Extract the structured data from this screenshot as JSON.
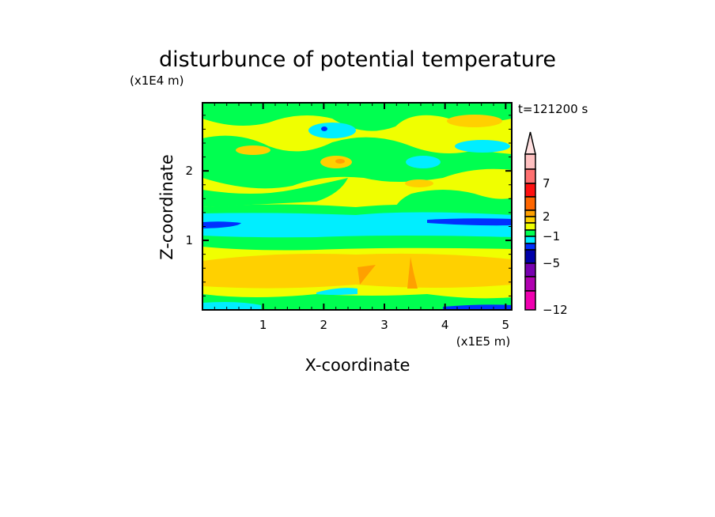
{
  "chart_data": {
    "type": "heatmap",
    "subtype": "filled-contour",
    "title": "disturbunce of potential temperature",
    "xlabel": "X-coordinate",
    "ylabel": "Z-coordinate",
    "x_unit_label": "(x1E5 m)",
    "y_unit_label": "(x1E4 m)",
    "time_label": "t=121200 s",
    "xlim": [
      0,
      5.1
    ],
    "ylim": [
      0,
      2.98
    ],
    "x_ticks": [
      1,
      2,
      3,
      4,
      5
    ],
    "x_tick_labels": [
      "1",
      "2",
      "3",
      "4",
      "5"
    ],
    "y_ticks": [
      1,
      2
    ],
    "y_tick_labels": [
      "1",
      "2"
    ],
    "colorbar": {
      "labels": [
        "7",
        "2",
        "−1",
        "−5",
        "−12"
      ],
      "colors_top_to_bottom": [
        "#ffe0e0",
        "#ffc0c0",
        "#ff7070",
        "#ff1010",
        "#ff6600",
        "#ffa000",
        "#ffd000",
        "#f0ff00",
        "#00ff50",
        "#00eeff",
        "#0030ff",
        "#0000aa",
        "#7800b0",
        "#b000b0",
        "#f000b0"
      ],
      "extend": "max"
    },
    "field_description_levels_present": [
      "#ffa000",
      "#ffd000",
      "#f0ff00",
      "#00ff50",
      "#00eeff",
      "#0030ff"
    ]
  }
}
